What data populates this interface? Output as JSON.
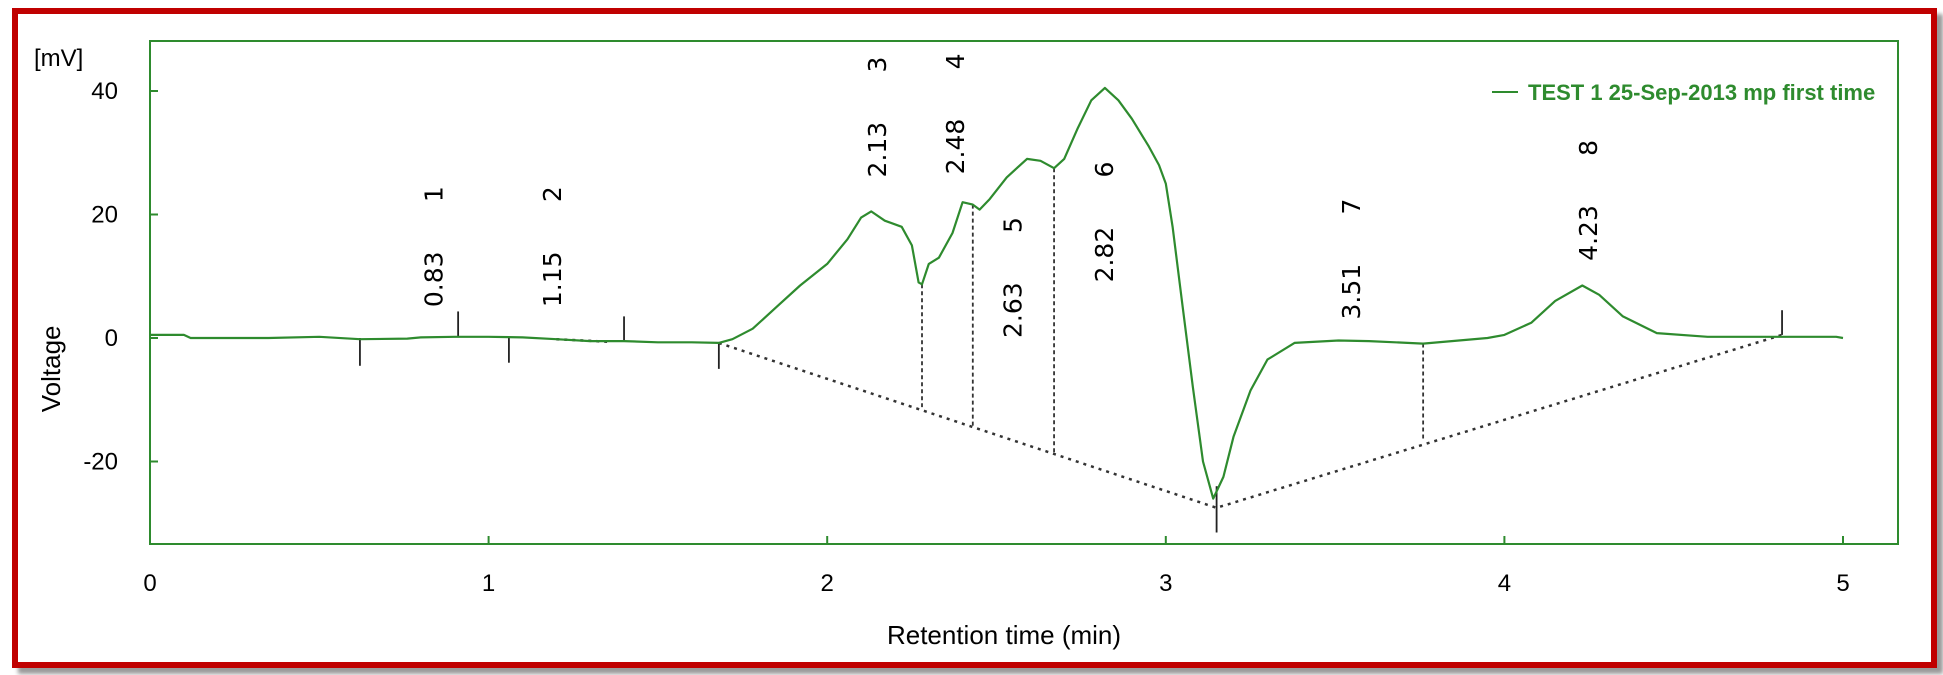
{
  "chart_data": {
    "type": "line",
    "title": "",
    "unit_label": "[mV]",
    "xlabel": "Retention time (min)",
    "ylabel": "Voltage",
    "xlim": [
      0,
      5.15
    ],
    "ylim": [
      -35,
      48
    ],
    "x_ticks": [
      0,
      1,
      2,
      3,
      4,
      5
    ],
    "y_ticks": [
      40,
      20,
      0,
      -20
    ],
    "x_tick_labels": [
      "0",
      "1",
      "2",
      "3",
      "4",
      "5"
    ],
    "y_tick_labels": [
      "40",
      "20",
      "0",
      "-20"
    ],
    "grid": false,
    "legend_position": "top-right",
    "colors": {
      "trace": "#2e8b2e",
      "frame": "#2e8b2e",
      "border": "#c00000"
    },
    "series": [
      {
        "name": "TEST 1 25-Sep-2013 mp first time",
        "points": [
          [
            0,
            0.5
          ],
          [
            0.1,
            0.5
          ],
          [
            0.12,
            0
          ],
          [
            0.35,
            0
          ],
          [
            0.5,
            0.2
          ],
          [
            0.62,
            -0.2
          ],
          [
            0.76,
            -0.1
          ],
          [
            0.8,
            0.1
          ],
          [
            0.9,
            0.2
          ],
          [
            1.0,
            0.2
          ],
          [
            1.1,
            0.1
          ],
          [
            1.2,
            -0.2
          ],
          [
            1.3,
            -0.5
          ],
          [
            1.4,
            -0.5
          ],
          [
            1.5,
            -0.7
          ],
          [
            1.6,
            -0.7
          ],
          [
            1.68,
            -0.8
          ],
          [
            1.72,
            -0.2
          ],
          [
            1.78,
            1.5
          ],
          [
            1.85,
            5
          ],
          [
            1.92,
            8.5
          ],
          [
            2.0,
            12
          ],
          [
            2.06,
            16
          ],
          [
            2.1,
            19.5
          ],
          [
            2.13,
            20.5
          ],
          [
            2.17,
            19
          ],
          [
            2.22,
            18
          ],
          [
            2.25,
            15
          ],
          [
            2.27,
            9
          ],
          [
            2.28,
            8.7
          ],
          [
            2.3,
            12
          ],
          [
            2.33,
            13
          ],
          [
            2.37,
            17
          ],
          [
            2.4,
            22
          ],
          [
            2.43,
            21.6
          ],
          [
            2.45,
            20.8
          ],
          [
            2.48,
            22.5
          ],
          [
            2.53,
            26
          ],
          [
            2.59,
            29
          ],
          [
            2.63,
            28.7
          ],
          [
            2.67,
            27.5
          ],
          [
            2.7,
            29
          ],
          [
            2.74,
            34
          ],
          [
            2.78,
            38.5
          ],
          [
            2.82,
            40.5
          ],
          [
            2.86,
            38.5
          ],
          [
            2.9,
            35.5
          ],
          [
            2.95,
            31
          ],
          [
            2.98,
            28
          ],
          [
            3.0,
            25
          ],
          [
            3.02,
            18
          ],
          [
            3.05,
            5
          ],
          [
            3.08,
            -8
          ],
          [
            3.11,
            -20
          ],
          [
            3.14,
            -26
          ],
          [
            3.17,
            -22.5
          ],
          [
            3.2,
            -16
          ],
          [
            3.25,
            -8.5
          ],
          [
            3.3,
            -3.5
          ],
          [
            3.38,
            -0.8
          ],
          [
            3.51,
            -0.4
          ],
          [
            3.6,
            -0.5
          ],
          [
            3.76,
            -0.9
          ],
          [
            3.95,
            0
          ],
          [
            4.0,
            0.5
          ],
          [
            4.08,
            2.5
          ],
          [
            4.15,
            6
          ],
          [
            4.23,
            8.5
          ],
          [
            4.28,
            7
          ],
          [
            4.35,
            3.5
          ],
          [
            4.45,
            0.8
          ],
          [
            4.6,
            0.2
          ],
          [
            4.8,
            0.2
          ],
          [
            4.98,
            0.2
          ],
          [
            5.0,
            0
          ]
        ]
      }
    ],
    "baseline": [
      [
        1.68,
        -0.8
      ],
      [
        3.15,
        -27.5
      ],
      [
        4.82,
        0.5
      ]
    ],
    "drop_lines": [
      {
        "x": 2.28,
        "y_top": 8.7,
        "y_bottom": -11.2
      },
      {
        "x": 2.43,
        "y_top": 21.6,
        "y_bottom": -14.2
      },
      {
        "x": 2.67,
        "y_top": 27.5,
        "y_bottom": -18.6
      },
      {
        "x": 3.76,
        "y_top": -0.9,
        "y_bottom": -16.6
      }
    ],
    "marker_ticks": [
      {
        "x": 0.62,
        "y_from": 0,
        "y_to": -4.5
      },
      {
        "x": 0.91,
        "y_from": 0.3,
        "y_to": 4.3
      },
      {
        "x": 1.06,
        "y_from": 0,
        "y_to": -4
      },
      {
        "x": 1.4,
        "y_from": -0.5,
        "y_to": 3.5
      },
      {
        "x": 1.68,
        "y_from": -0.8,
        "y_to": -5
      },
      {
        "x": 3.15,
        "y_from": -24,
        "y_to": -31.5
      },
      {
        "x": 4.82,
        "y_from": 0.5,
        "y_to": 4.5
      }
    ],
    "peaks": [
      {
        "number": "1",
        "time": "0.83",
        "x": 0.84,
        "time_y": 5,
        "number_y": 22
      },
      {
        "number": "2",
        "time": "1.15",
        "x": 1.19,
        "time_y": 5,
        "number_y": 22
      },
      {
        "number": "3",
        "time": "2.13",
        "x": 2.15,
        "time_y": 26,
        "number_y": 43
      },
      {
        "number": "4",
        "time": "2.48",
        "x": 2.38,
        "time_y": 26.5,
        "number_y": 43.5
      },
      {
        "number": "5",
        "time": "2.63",
        "x": 2.55,
        "time_y": 0,
        "number_y": 17
      },
      {
        "number": "6",
        "time": "2.82",
        "x": 2.82,
        "time_y": 9,
        "number_y": 26
      },
      {
        "number": "7",
        "time": "3.51",
        "x": 3.55,
        "time_y": 3,
        "number_y": 20
      },
      {
        "number": "8",
        "time": "4.23",
        "x": 4.25,
        "time_y": 12.5,
        "number_y": 29.5
      }
    ]
  }
}
